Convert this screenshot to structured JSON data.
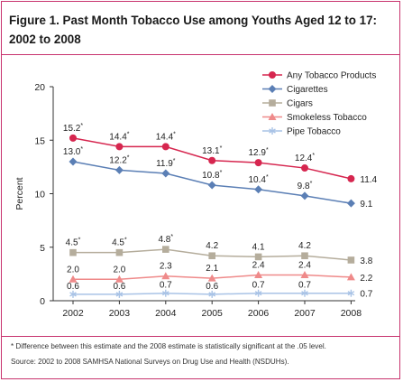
{
  "figure": {
    "title": "Figure 1. Past Month Tobacco Use among Youths Aged 12 to 17: 2002 to 2008",
    "footnote_significance": "* Difference between this estimate and the 2008 estimate is statistically significant at the .05 level.",
    "source": "Source: 2002 to 2008 SAMHSA National Surveys on Drug Use and Health (NSDUHs)."
  },
  "colors": {
    "frame_border": "#c8336e",
    "axis": "#333333",
    "text": "#222222"
  },
  "chart_data": {
    "type": "line",
    "title": "Figure 1. Past Month Tobacco Use among Youths Aged 12 to 17: 2002 to 2008",
    "xlabel": "",
    "ylabel": "Percent",
    "x": [
      "2002",
      "2003",
      "2004",
      "2005",
      "2006",
      "2007",
      "2008"
    ],
    "ylim": [
      0,
      20
    ],
    "yticks": [
      0,
      5,
      10,
      15,
      20
    ],
    "grid": false,
    "legend_position": "top-right",
    "series": [
      {
        "name": "Any Tobacco Products",
        "color": "#d6264f",
        "marker": "circle",
        "values": [
          15.2,
          14.4,
          14.4,
          13.1,
          12.9,
          12.4,
          11.4
        ],
        "labels": [
          "15.2",
          "14.4",
          "14.4",
          "13.1",
          "12.9",
          "12.4",
          "11.4"
        ],
        "significant": [
          true,
          true,
          true,
          true,
          true,
          true,
          false
        ]
      },
      {
        "name": "Cigarettes",
        "color": "#5b7fb5",
        "marker": "diamond",
        "values": [
          13.0,
          12.2,
          11.9,
          10.8,
          10.4,
          9.8,
          9.1
        ],
        "labels": [
          "13.0",
          "12.2",
          "11.9",
          "10.8",
          "10.4",
          "9.8",
          "9.1"
        ],
        "significant": [
          true,
          true,
          true,
          true,
          true,
          true,
          false
        ]
      },
      {
        "name": "Cigars",
        "color": "#b5ad9c",
        "marker": "square",
        "values": [
          4.5,
          4.5,
          4.8,
          4.2,
          4.1,
          4.2,
          3.8
        ],
        "labels": [
          "4.5",
          "4.5",
          "4.8",
          "4.2",
          "4.1",
          "4.2",
          "3.8"
        ],
        "significant": [
          true,
          true,
          true,
          false,
          false,
          false,
          false
        ]
      },
      {
        "name": "Smokeless Tobacco",
        "color": "#ef8a8a",
        "marker": "triangle",
        "values": [
          2.0,
          2.0,
          2.3,
          2.1,
          2.4,
          2.4,
          2.2
        ],
        "labels": [
          "2.0",
          "2.0",
          "2.3",
          "2.1",
          "2.4",
          "2.4",
          "2.2"
        ],
        "significant": [
          false,
          false,
          false,
          false,
          false,
          false,
          false
        ]
      },
      {
        "name": "Pipe Tobacco",
        "color": "#a9c3e6",
        "marker": "asterisk",
        "values": [
          0.6,
          0.6,
          0.7,
          0.6,
          0.7,
          0.7,
          0.7
        ],
        "labels": [
          "0.6",
          "0.6",
          "0.7",
          "0.6",
          "0.7",
          "0.7",
          "0.7"
        ],
        "significant": [
          false,
          false,
          false,
          false,
          false,
          false,
          false
        ]
      }
    ]
  }
}
